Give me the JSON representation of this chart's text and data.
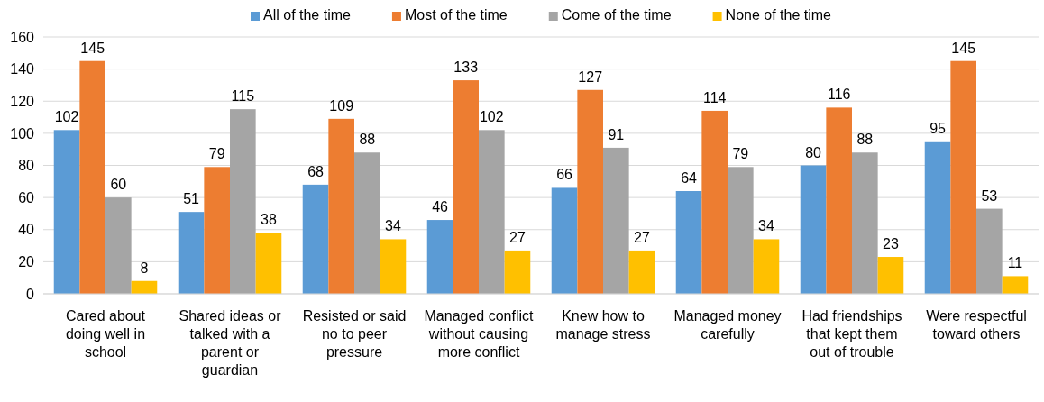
{
  "chart_data": {
    "type": "bar",
    "categories": [
      "Cared about doing well in school",
      "Shared ideas or talked with a parent or guardian",
      "Resisted or said no to peer pressure",
      "Managed conflict without causing more conflict",
      "Knew how to manage stress",
      "Managed money carefully",
      "Had friendships that kept them out of trouble",
      "Were respectful toward others"
    ],
    "series": [
      {
        "name": "All of the time",
        "color": "#5b9bd5",
        "values": [
          102,
          51,
          68,
          46,
          66,
          64,
          80,
          95
        ]
      },
      {
        "name": "Most of the time",
        "color": "#ed7d31",
        "values": [
          145,
          79,
          109,
          133,
          127,
          114,
          116,
          145
        ]
      },
      {
        "name": "Come of the time",
        "color": "#a5a5a5",
        "values": [
          60,
          115,
          88,
          102,
          91,
          79,
          88,
          53
        ]
      },
      {
        "name": "None of the time",
        "color": "#ffc000",
        "values": [
          8,
          38,
          34,
          27,
          27,
          34,
          23,
          11
        ]
      }
    ],
    "ylim": [
      0,
      160
    ],
    "yticks": [
      0,
      20,
      40,
      60,
      80,
      100,
      120,
      140,
      160
    ],
    "grid": "y",
    "legend": "top",
    "data_labels": true
  }
}
